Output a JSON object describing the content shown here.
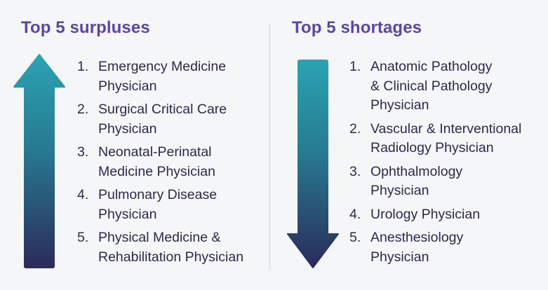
{
  "surpluses": {
    "title": "Top 5 surpluses",
    "items": [
      {
        "number": "1.",
        "text": "Emergency Medicine\nPhysician"
      },
      {
        "number": "2.",
        "text": "Surgical Critical Care\nPhysician"
      },
      {
        "number": "3.",
        "text": "Neonatal-Perinatal\nMedicine Physician"
      },
      {
        "number": "4.",
        "text": "Pulmonary Disease\nPhysician"
      },
      {
        "number": "5.",
        "text": "Physical Medicine &\nRehabilitation Physician"
      }
    ],
    "arrow_icon": "up-arrow-icon"
  },
  "shortages": {
    "title": "Top 5 shortages",
    "items": [
      {
        "number": "1.",
        "text": "Anatomic Pathology\n& Clinical Pathology\nPhysician"
      },
      {
        "number": "2.",
        "text": "Vascular & Interventional\nRadiology Physician"
      },
      {
        "number": "3.",
        "text": "Ophthalmology\nPhysician"
      },
      {
        "number": "4.",
        "text": "Urology Physician"
      },
      {
        "number": "5.",
        "text": "Anesthesiology\nPhysician"
      }
    ],
    "arrow_icon": "down-arrow-icon"
  },
  "colors": {
    "heading": "#5b45a8",
    "text": "#2a2950",
    "arrow_teal": "#2aa3b3",
    "arrow_navy": "#2b2b5a",
    "background": "#f5f6f7"
  }
}
